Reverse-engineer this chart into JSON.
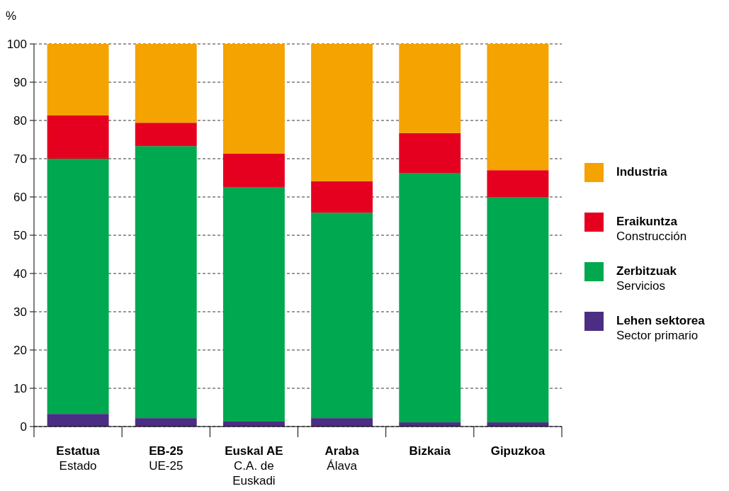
{
  "chart_data": {
    "type": "bar",
    "stacked": true,
    "ylabel": "%",
    "categories": [
      "Estatua\nEstado",
      "EB-25\nUE-25",
      "Euskal AE\nC.A. de\nEuskadi",
      "Araba\nÁlava",
      "Bizkaia",
      "Gipuzkoa"
    ],
    "series": [
      {
        "name": "Lehen sektorea\nSector primario",
        "color": "#4b2e83",
        "values": [
          3.3,
          2.2,
          1.3,
          2.2,
          1.1,
          1.1
        ]
      },
      {
        "name": "Zerbitzuak\nServicios",
        "color": "#00a84f",
        "values": [
          66.7,
          71.1,
          61.3,
          53.7,
          65.2,
          58.9
        ]
      },
      {
        "name": "Eraikuntza\nConstrucción",
        "color": "#e6001f",
        "values": [
          11.3,
          6.1,
          8.7,
          8.2,
          10.4,
          7.0
        ]
      },
      {
        "name": "Industria",
        "color": "#f4a300",
        "values": [
          18.7,
          20.6,
          28.7,
          35.9,
          23.3,
          33.0
        ]
      }
    ],
    "ylim": [
      0,
      100
    ],
    "yticks": [
      0,
      10,
      20,
      30,
      40,
      50,
      60,
      70,
      80,
      90,
      100
    ],
    "grid": "y",
    "legend": "right"
  }
}
